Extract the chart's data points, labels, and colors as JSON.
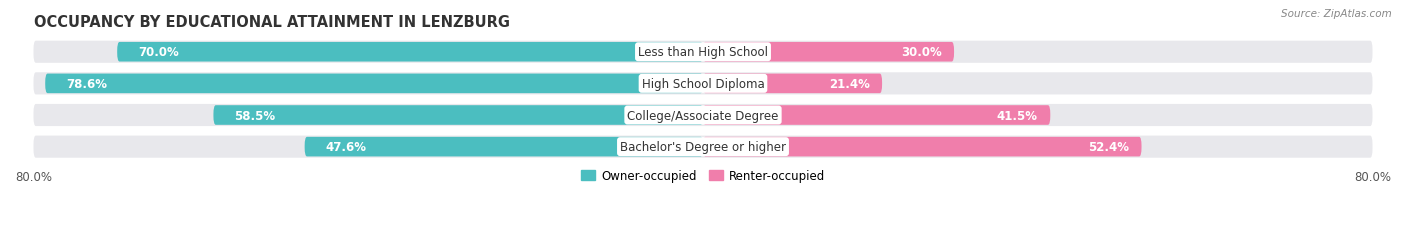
{
  "title": "OCCUPANCY BY EDUCATIONAL ATTAINMENT IN LENZBURG",
  "source": "Source: ZipAtlas.com",
  "categories": [
    "Less than High School",
    "High School Diploma",
    "College/Associate Degree",
    "Bachelor's Degree or higher"
  ],
  "owner_pct": [
    70.0,
    78.6,
    58.5,
    47.6
  ],
  "renter_pct": [
    30.0,
    21.4,
    41.5,
    52.4
  ],
  "owner_color": "#4BBEC0",
  "renter_color": "#F07EAB",
  "bar_bg_color": "#E8E8EC",
  "row_bg_color": "#F0F0F4",
  "owner_label": "Owner-occupied",
  "renter_label": "Renter-occupied",
  "axis_left_label": "80.0%",
  "axis_right_label": "80.0%",
  "title_fontsize": 10.5,
  "bar_label_fontsize": 8.5,
  "cat_label_fontsize": 8.5,
  "legend_fontsize": 8.5,
  "axis_fontsize": 8.5,
  "bg_color": "#FFFFFF",
  "bar_height": 0.62,
  "max_val": 80.0,
  "owner_text_color_inside": "#FFFFFF",
  "owner_text_color_outside": "#555555",
  "renter_text_color_inside": "#FFFFFF",
  "renter_text_color_outside": "#555555"
}
